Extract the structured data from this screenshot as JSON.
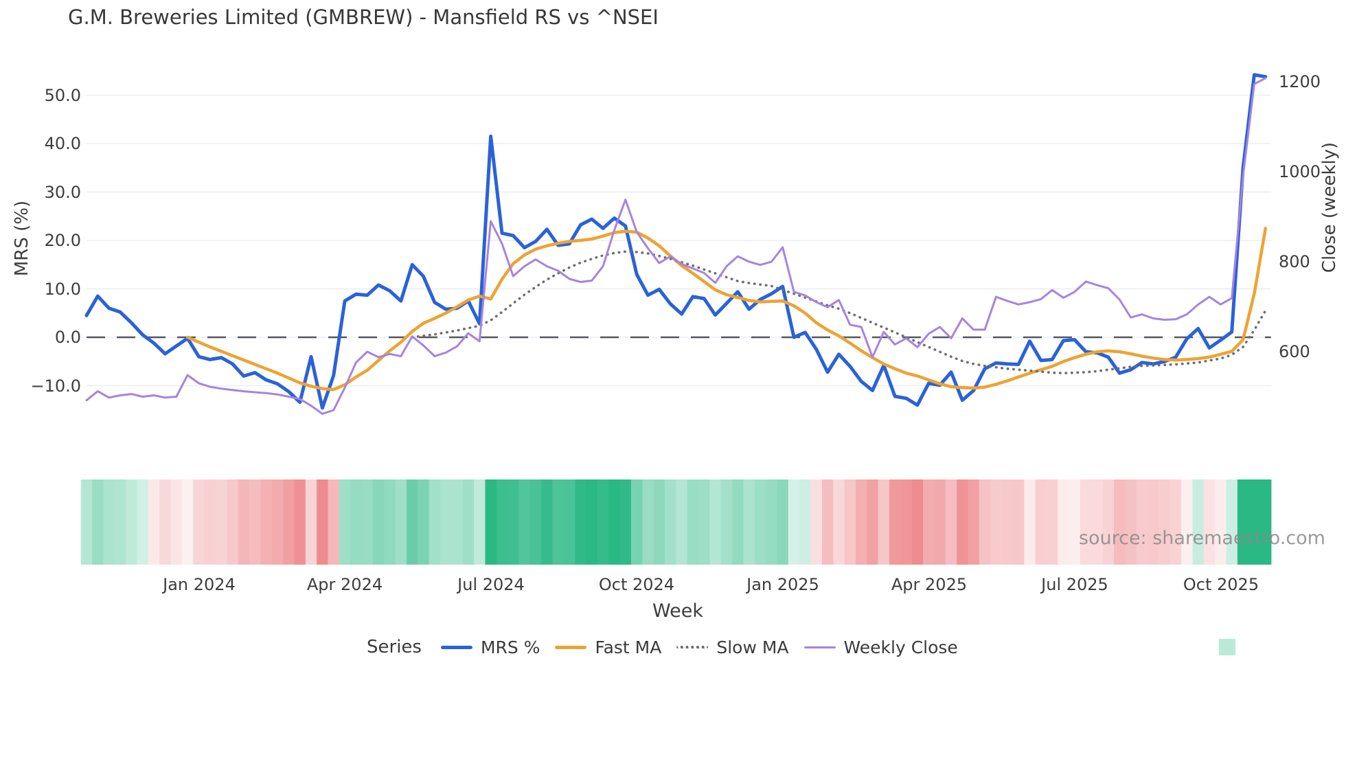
{
  "title": "G.M. Breweries Limited (GMBREW) - Mansfield RS vs ^NSEI",
  "source": "source: sharemaestro.com",
  "axes": {
    "left": {
      "label": "MRS (%)",
      "ticks": [
        "50.0",
        "40.0",
        "30.0",
        "20.0",
        "10.0",
        "0.0",
        "−10.0"
      ]
    },
    "right": {
      "label": "Close (weekly)",
      "ticks": [
        "1200",
        "1000",
        "800",
        "600"
      ]
    },
    "x": {
      "label": "Week",
      "ticks": [
        "Jan 2024",
        "Apr 2024",
        "Jul 2024",
        "Oct 2024",
        "Jan 2025",
        "Apr 2025",
        "Jul 2025",
        "Oct 2025"
      ]
    }
  },
  "legend": {
    "title": "Series",
    "items": [
      {
        "label": "MRS %",
        "color": "#2a62d8",
        "style": "solid"
      },
      {
        "label": "Fast MA",
        "color": "#eda333",
        "style": "solid"
      },
      {
        "label": "Slow MA",
        "color": "#6f6f6f",
        "style": "dotted"
      },
      {
        "label": "Weekly Close",
        "color": "#a584e1",
        "style": "thin"
      },
      {
        "label": "",
        "color": "#b9ead8",
        "style": "square"
      }
    ]
  },
  "chart_data": {
    "type": "line",
    "x_unit": "week_index",
    "n_weeks": 106,
    "xtick_weeks": [
      10,
      23,
      36,
      49,
      62,
      75,
      88,
      101
    ],
    "xtick_labels": [
      "Jan 2024",
      "Apr 2024",
      "Jul 2024",
      "Oct 2024",
      "Jan 2025",
      "Apr 2025",
      "Jul 2025",
      "Oct 2025"
    ],
    "ylabel_left": "MRS (%)",
    "ylabel_right": "Close (weekly)",
    "yticks_left": [
      50.0,
      40.0,
      30.0,
      20.0,
      10.0,
      0.0,
      -10.0
    ],
    "yticks_right": [
      1200,
      1000,
      800,
      600
    ],
    "ylim_left": [
      -17.5,
      57.5
    ],
    "ylim_right": [
      485,
      1215
    ],
    "grid": true,
    "zero_line": true,
    "legend_position": "bottom",
    "series": [
      {
        "name": "MRS %",
        "axis": "left",
        "color": "#2a62d8",
        "width": 5,
        "dash": "solid",
        "values": [
          4.5,
          8.5,
          6.0,
          5.2,
          3.0,
          0.5,
          -1.2,
          -3.4,
          -1.8,
          -0.2,
          -4.0,
          -4.6,
          -4.2,
          -5.5,
          -8.0,
          -7.3,
          -8.8,
          -9.6,
          -11.2,
          -13.4,
          -4.0,
          -14.6,
          -7.9,
          7.5,
          8.9,
          8.7,
          10.8,
          9.6,
          7.5,
          15.0,
          12.6,
          7.2,
          5.8,
          6.0,
          7.5,
          2.8,
          41.5,
          21.5,
          21.0,
          18.5,
          19.8,
          22.3,
          19.0,
          19.3,
          23.2,
          24.4,
          22.5,
          24.6,
          23.0,
          13.0,
          8.7,
          9.9,
          6.9,
          4.8,
          8.4,
          8.0,
          4.6,
          7.0,
          9.4,
          5.8,
          7.8,
          9.0,
          10.5,
          0.0,
          1.0,
          -2.5,
          -7.2,
          -3.5,
          -6.0,
          -9.1,
          -11.0,
          -5.8,
          -12.2,
          -12.6,
          -14.0,
          -9.5,
          -9.9,
          -7.2,
          -13.0,
          -11.0,
          -6.5,
          -5.3,
          -5.5,
          -5.6,
          -0.8,
          -4.8,
          -4.6,
          -0.7,
          -0.5,
          -3.0,
          -3.2,
          -4.1,
          -7.4,
          -6.7,
          -5.2,
          -5.5,
          -5.0,
          -4.1,
          -0.3,
          1.8,
          -2.2,
          -0.6,
          1.1,
          35.0,
          54.2,
          53.8
        ]
      },
      {
        "name": "Fast MA",
        "axis": "left",
        "color": "#eda333",
        "width": 4.5,
        "dash": "solid",
        "values": [
          null,
          null,
          null,
          null,
          null,
          null,
          null,
          null,
          null,
          0.0,
          -1.0,
          -2.0,
          -2.9,
          -3.8,
          -4.7,
          -5.6,
          -6.5,
          -7.4,
          -8.4,
          -9.4,
          -10.1,
          -10.6,
          -10.8,
          -9.8,
          -8.2,
          -6.8,
          -4.8,
          -2.8,
          -1.0,
          1.2,
          2.9,
          3.9,
          5.0,
          6.3,
          7.7,
          8.5,
          7.9,
          12.0,
          15.2,
          17.0,
          18.2,
          18.9,
          19.4,
          19.8,
          20.0,
          20.3,
          20.9,
          21.6,
          21.9,
          21.7,
          20.5,
          18.9,
          16.8,
          14.8,
          13.2,
          11.5,
          9.8,
          8.8,
          8.2,
          7.6,
          7.3,
          7.4,
          7.5,
          6.5,
          5.0,
          3.0,
          1.5,
          0.3,
          -1.2,
          -2.8,
          -4.2,
          -5.5,
          -6.5,
          -7.4,
          -8.0,
          -8.8,
          -9.6,
          -10.2,
          -10.4,
          -10.5,
          -10.3,
          -9.7,
          -9.0,
          -8.2,
          -7.4,
          -6.7,
          -6.0,
          -5.0,
          -4.2,
          -3.5,
          -3.0,
          -2.8,
          -3.0,
          -3.4,
          -3.9,
          -4.3,
          -4.6,
          -4.7,
          -4.6,
          -4.4,
          -4.1,
          -3.5,
          -2.9,
          -0.5,
          9.0,
          22.5
        ]
      },
      {
        "name": "Slow MA",
        "axis": "left",
        "color": "#6f6f6f",
        "width": 3.6,
        "dash": "dotted",
        "values": [
          null,
          null,
          null,
          null,
          null,
          null,
          null,
          null,
          null,
          null,
          null,
          null,
          null,
          null,
          null,
          null,
          null,
          null,
          null,
          null,
          null,
          null,
          null,
          null,
          null,
          null,
          null,
          null,
          null,
          0.0,
          0.3,
          0.6,
          1.0,
          1.4,
          1.9,
          2.4,
          3.5,
          5.2,
          7.0,
          8.8,
          10.4,
          11.9,
          13.2,
          14.4,
          15.4,
          16.2,
          16.9,
          17.4,
          17.7,
          17.6,
          17.3,
          16.8,
          16.2,
          15.5,
          14.8,
          14.0,
          13.2,
          12.4,
          11.6,
          11.2,
          10.9,
          10.6,
          9.8,
          9.0,
          8.2,
          7.4,
          6.6,
          5.9,
          5.0,
          4.0,
          3.0,
          2.0,
          1.0,
          0.0,
          -1.0,
          -2.0,
          -3.0,
          -4.0,
          -4.9,
          -5.5,
          -5.9,
          -6.2,
          -6.5,
          -6.7,
          -6.9,
          -7.1,
          -7.3,
          -7.4,
          -7.3,
          -7.2,
          -7.0,
          -6.7,
          -6.4,
          -6.1,
          -5.9,
          -5.8,
          -5.7,
          -5.6,
          -5.4,
          -5.2,
          -4.8,
          -4.4,
          -3.6,
          -2.0,
          1.5,
          5.5
        ]
      },
      {
        "name": "Weekly Close",
        "axis": "right",
        "color": "#a584e1",
        "width": 3,
        "dash": "solid",
        "values": [
          492,
          512,
          498,
          503,
          506,
          500,
          503,
          498,
          500,
          548,
          530,
          522,
          518,
          515,
          512,
          510,
          508,
          505,
          500,
          495,
          480,
          462,
          470,
          520,
          576,
          600,
          588,
          595,
          590,
          634,
          614,
          590,
          598,
          612,
          641,
          623,
          890,
          840,
          768,
          790,
          805,
          790,
          780,
          762,
          755,
          758,
          790,
          870,
          938,
          866,
          830,
          797,
          812,
          795,
          785,
          775,
          753,
          790,
          812,
          800,
          793,
          800,
          832,
          733,
          725,
          710,
          699,
          715,
          660,
          655,
          588,
          644,
          616,
          630,
          610,
          640,
          655,
          630,
          674,
          649,
          649,
          722,
          713,
          705,
          710,
          717,
          737,
          720,
          733,
          756,
          748,
          741,
          716,
          676,
          683,
          674,
          671,
          672,
          683,
          705,
          722,
          705,
          719,
          990,
          1195,
          1208
        ]
      }
    ],
    "heatmap": {
      "based_on": "MRS %",
      "positive_color": "#2ab885",
      "negative_color": "#ee8b8e",
      "neutral_color": "#ffffff",
      "legend_swatch_color": "#b9ead8"
    }
  }
}
